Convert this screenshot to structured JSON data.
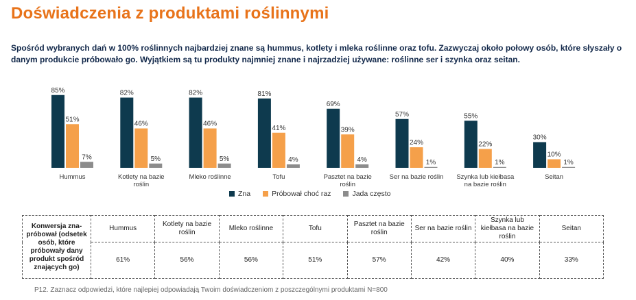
{
  "title": "Doświadczenia z produktami roślinnymi",
  "subtitle": "Spośród wybranych dań w 100% roślinnych najbardziej znane są hummus, kotlety i mleka roślinne oraz tofu. Zazwyczaj około połowy osób, które słyszały o danym produkcie próbowało go. Wyjątkiem są tu produkty najmniej znane i najrzadziej używane: roślinne ser i szynka oraz seitan.",
  "colors": {
    "zna": "#0e3a4e",
    "probowal": "#f5a04a",
    "jada": "#8c8c8c",
    "title": "#e8731a"
  },
  "chart_data": {
    "type": "bar",
    "categories": [
      "Hummus",
      "Kotlety na bazie roślin",
      "Mleko roślinne",
      "Tofu",
      "Pasztet na bazie roślin",
      "Ser na bazie roślin",
      "Szynka lub kiełbasa na bazie roślin",
      "Seitan"
    ],
    "category_lines": [
      [
        "Hummus"
      ],
      [
        "Kotlety na bazie",
        "roślin"
      ],
      [
        "Mleko roślinne"
      ],
      [
        "Tofu"
      ],
      [
        "Pasztet na bazie",
        "roślin"
      ],
      [
        "Ser na bazie roślin"
      ],
      [
        "Szynka lub kiełbasa",
        "na bazie roślin"
      ],
      [
        "Seitan"
      ]
    ],
    "series": [
      {
        "name": "Zna",
        "values": [
          85,
          82,
          82,
          81,
          69,
          57,
          55,
          30
        ]
      },
      {
        "name": "Próbował choć raz",
        "values": [
          51,
          46,
          46,
          41,
          39,
          24,
          22,
          10
        ]
      },
      {
        "name": "Jada często",
        "values": [
          7,
          5,
          5,
          4,
          4,
          1,
          1,
          1
        ]
      }
    ],
    "value_suffix": "%",
    "ylim": [
      0,
      100
    ],
    "grid": false,
    "legend_position": "bottom"
  },
  "legend": {
    "zna": "Zna",
    "probowal": "Próbował choć raz",
    "jada": "Jada często"
  },
  "table": {
    "header_label": "Konwersja zna-próbował (odsetek osób, które próbowały dany produkt spośród znających go)",
    "products": [
      "Hummus",
      "Kotlety na bazie roślin",
      "Mleko roślinne",
      "Tofu",
      "Pasztet na bazie roślin",
      "Ser na bazie roślin",
      "Szynka lub kiełbasa na bazie roślin",
      "Seitan"
    ],
    "values": [
      "61%",
      "56%",
      "56%",
      "51%",
      "57%",
      "42%",
      "40%",
      "33%"
    ]
  },
  "footnote": "P12. Zaznacz odpowiedzi, które najlepiej odpowiadają Twoim doświadczeniom z poszczególnymi produktami N=800"
}
